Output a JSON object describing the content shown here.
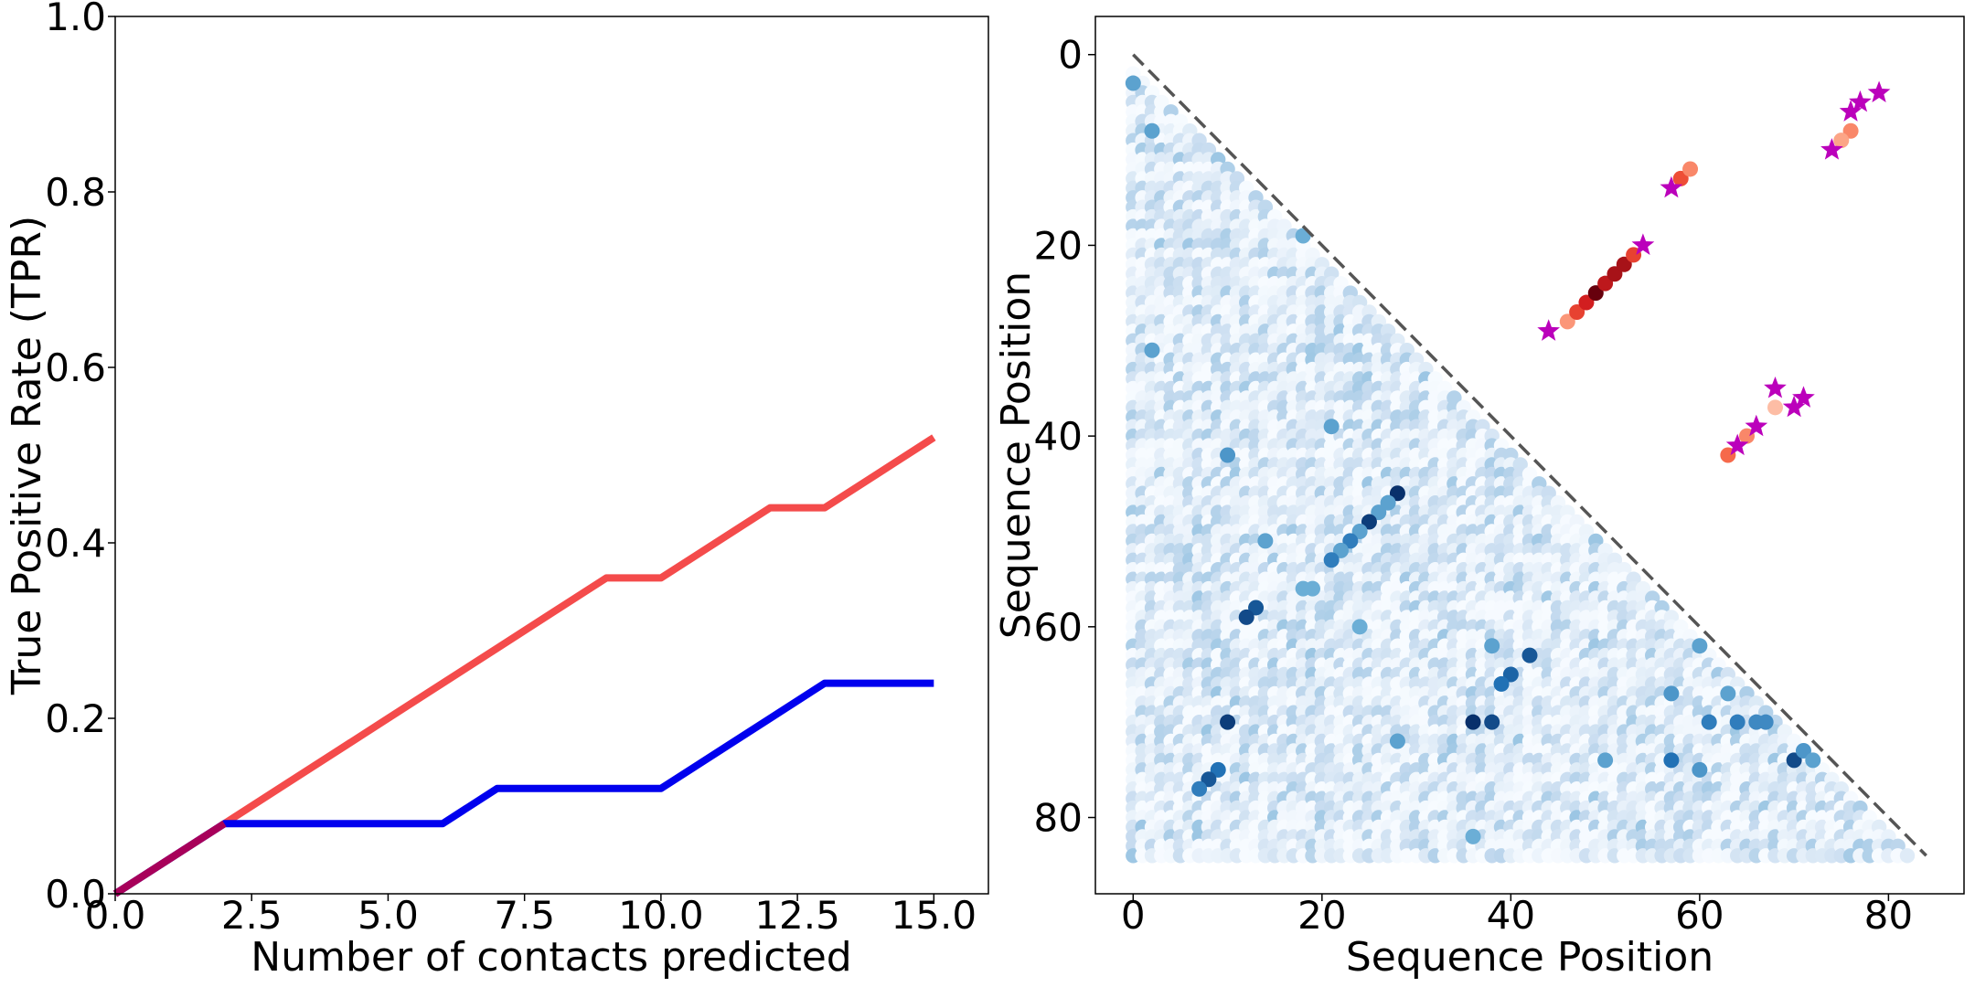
{
  "chart_data": [
    {
      "type": "line",
      "xlabel": "Number of contacts predicted",
      "ylabel": "True Positive Rate (TPR)",
      "xlim": [
        0,
        16
      ],
      "ylim": [
        0,
        1.0
      ],
      "xticks": [
        "0.0",
        "2.5",
        "5.0",
        "7.5",
        "10.0",
        "12.5",
        "15.0"
      ],
      "yticks": [
        "0.0",
        "0.2",
        "0.4",
        "0.6",
        "0.8",
        "1.0"
      ],
      "xtick_values": [
        0,
        2.5,
        5,
        7.5,
        10,
        12.5,
        15
      ],
      "ytick_values": [
        0,
        0.2,
        0.4,
        0.6,
        0.8,
        1.0
      ],
      "series": [
        {
          "color": "#f44b4b",
          "x": [
            0,
            1,
            2,
            3,
            4,
            5,
            6,
            7,
            8,
            9,
            10,
            11,
            12,
            13,
            14,
            15
          ],
          "y": [
            0,
            0.04,
            0.08,
            0.12,
            0.16,
            0.2,
            0.24,
            0.28,
            0.32,
            0.36,
            0.36,
            0.4,
            0.44,
            0.44,
            0.48,
            0.52
          ]
        },
        {
          "color": "#0000ee",
          "x": [
            0,
            1,
            2,
            3,
            4,
            5,
            6,
            7,
            8,
            9,
            10,
            11,
            12,
            13,
            14,
            15
          ],
          "y": [
            0,
            0.04,
            0.08,
            0.08,
            0.08,
            0.08,
            0.08,
            0.12,
            0.12,
            0.12,
            0.12,
            0.16,
            0.2,
            0.24,
            0.24,
            0.24
          ]
        },
        {
          "color": "#a8005a",
          "x": [
            0,
            1,
            2
          ],
          "y": [
            0,
            0.04,
            0.08
          ]
        }
      ]
    },
    {
      "type": "scatter",
      "xlabel": "Sequence Position",
      "ylabel": "Sequence Position",
      "xlim": [
        -4,
        88
      ],
      "ylim": [
        88,
        -4
      ],
      "xticks": [
        "0",
        "20",
        "40",
        "60",
        "80"
      ],
      "yticks": [
        "0",
        "20",
        "40",
        "60",
        "80"
      ],
      "xtick_values": [
        0,
        20,
        40,
        60,
        80
      ],
      "ytick_values": [
        0,
        20,
        40,
        60,
        80
      ],
      "diagonal": {
        "from": [
          0,
          0
        ],
        "to": [
          84,
          84
        ],
        "style": "dashed",
        "color": "#555555"
      },
      "background_points": {
        "colormap": "Blues",
        "region": "lower-triangle",
        "size": 84
      },
      "highlight_points_blue": [
        {
          "x": 0,
          "y": 3,
          "v": 0.55
        },
        {
          "x": 2,
          "y": 8,
          "v": 0.55
        },
        {
          "x": 2,
          "y": 31,
          "v": 0.55
        },
        {
          "x": 18,
          "y": 19,
          "v": 0.5
        },
        {
          "x": 10,
          "y": 42,
          "v": 0.6
        },
        {
          "x": 21,
          "y": 39,
          "v": 0.55
        },
        {
          "x": 28,
          "y": 46,
          "v": 1.0
        },
        {
          "x": 27,
          "y": 47,
          "v": 0.55
        },
        {
          "x": 26,
          "y": 48,
          "v": 0.55
        },
        {
          "x": 25,
          "y": 49,
          "v": 0.95
        },
        {
          "x": 24,
          "y": 50,
          "v": 0.55
        },
        {
          "x": 23,
          "y": 51,
          "v": 0.7
        },
        {
          "x": 22,
          "y": 52,
          "v": 0.55
        },
        {
          "x": 21,
          "y": 53,
          "v": 0.7
        },
        {
          "x": 14,
          "y": 51,
          "v": 0.55
        },
        {
          "x": 13,
          "y": 58,
          "v": 0.85
        },
        {
          "x": 12,
          "y": 59,
          "v": 0.9
        },
        {
          "x": 10,
          "y": 70,
          "v": 0.95
        },
        {
          "x": 9,
          "y": 75,
          "v": 0.75
        },
        {
          "x": 8,
          "y": 76,
          "v": 0.85
        },
        {
          "x": 7,
          "y": 77,
          "v": 0.7
        },
        {
          "x": 42,
          "y": 63,
          "v": 0.85
        },
        {
          "x": 40,
          "y": 65,
          "v": 0.8
        },
        {
          "x": 39,
          "y": 66,
          "v": 0.75
        },
        {
          "x": 38,
          "y": 62,
          "v": 0.55
        },
        {
          "x": 36,
          "y": 70,
          "v": 1.0
        },
        {
          "x": 38,
          "y": 70,
          "v": 0.9
        },
        {
          "x": 57,
          "y": 67,
          "v": 0.6
        },
        {
          "x": 60,
          "y": 62,
          "v": 0.55
        },
        {
          "x": 61,
          "y": 70,
          "v": 0.7
        },
        {
          "x": 63,
          "y": 67,
          "v": 0.55
        },
        {
          "x": 64,
          "y": 70,
          "v": 0.7
        },
        {
          "x": 66,
          "y": 70,
          "v": 0.65
        },
        {
          "x": 67,
          "y": 70,
          "v": 0.65
        },
        {
          "x": 57,
          "y": 74,
          "v": 0.75
        },
        {
          "x": 60,
          "y": 75,
          "v": 0.6
        },
        {
          "x": 70,
          "y": 74,
          "v": 0.9
        },
        {
          "x": 71,
          "y": 73,
          "v": 0.6
        },
        {
          "x": 72,
          "y": 74,
          "v": 0.55
        },
        {
          "x": 50,
          "y": 74,
          "v": 0.55
        },
        {
          "x": 28,
          "y": 72,
          "v": 0.55
        },
        {
          "x": 36,
          "y": 82,
          "v": 0.5
        },
        {
          "x": 24,
          "y": 60,
          "v": 0.5
        },
        {
          "x": 18,
          "y": 56,
          "v": 0.5
        },
        {
          "x": 19,
          "y": 56,
          "v": 0.5
        }
      ],
      "red_points": [
        {
          "x": 46,
          "y": 28,
          "v": 0.3
        },
        {
          "x": 47,
          "y": 27,
          "v": 0.6
        },
        {
          "x": 48,
          "y": 26,
          "v": 0.75
        },
        {
          "x": 49,
          "y": 25,
          "v": 1.0
        },
        {
          "x": 50,
          "y": 24,
          "v": 0.8
        },
        {
          "x": 51,
          "y": 23,
          "v": 0.85
        },
        {
          "x": 52,
          "y": 22,
          "v": 0.85
        },
        {
          "x": 53,
          "y": 21,
          "v": 0.6
        },
        {
          "x": 58,
          "y": 13,
          "v": 0.55
        },
        {
          "x": 59,
          "y": 12,
          "v": 0.35
        },
        {
          "x": 76,
          "y": 8,
          "v": 0.35
        },
        {
          "x": 75,
          "y": 9,
          "v": 0.25
        },
        {
          "x": 63,
          "y": 42,
          "v": 0.45
        },
        {
          "x": 65,
          "y": 40,
          "v": 0.35
        },
        {
          "x": 68,
          "y": 37,
          "v": 0.15
        }
      ],
      "star_points": [
        {
          "x": 44,
          "y": 29
        },
        {
          "x": 54,
          "y": 20
        },
        {
          "x": 57,
          "y": 14
        },
        {
          "x": 79,
          "y": 4
        },
        {
          "x": 77,
          "y": 5
        },
        {
          "x": 76,
          "y": 6
        },
        {
          "x": 74,
          "y": 10
        },
        {
          "x": 68,
          "y": 35
        },
        {
          "x": 71,
          "y": 36
        },
        {
          "x": 70,
          "y": 37
        },
        {
          "x": 66,
          "y": 39
        },
        {
          "x": 64,
          "y": 41
        }
      ],
      "star_color": "#bb00bb"
    }
  ]
}
